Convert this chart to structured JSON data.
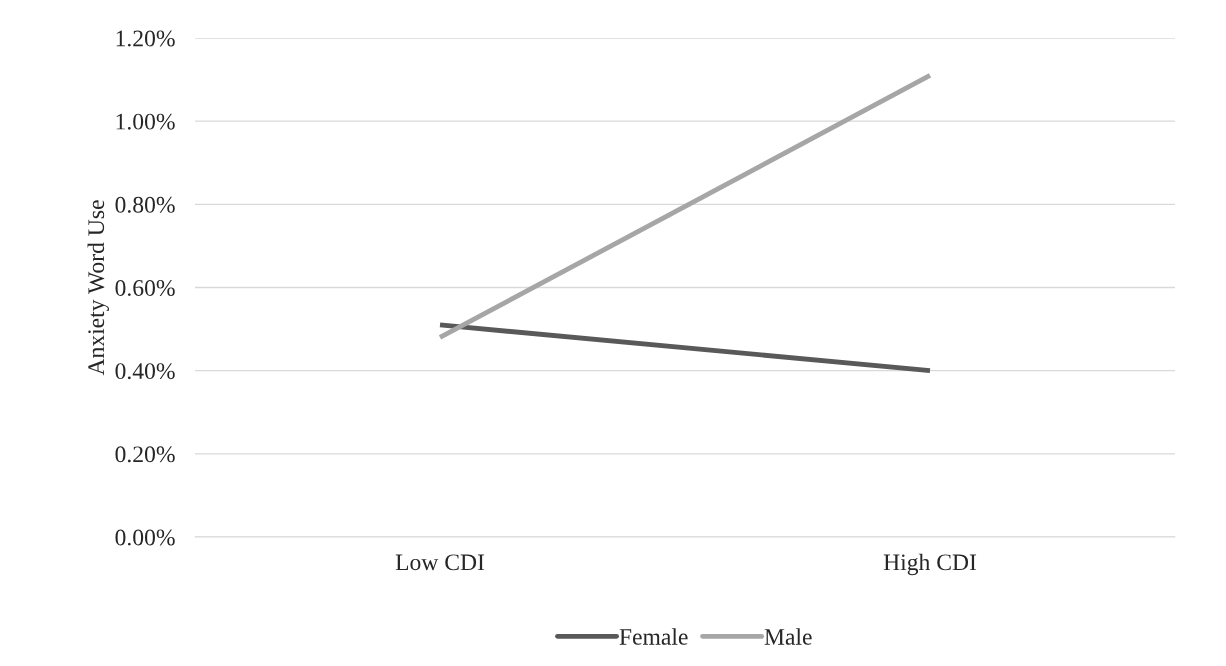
{
  "chart_data": {
    "type": "line",
    "ylabel": "Anxiety Word Use",
    "categories": [
      "Low CDI",
      "High CDI"
    ],
    "series": [
      {
        "name": "Female",
        "color": "#595959",
        "values": [
          0.51,
          0.4
        ]
      },
      {
        "name": "Male",
        "color": "#a6a6a6",
        "values": [
          0.48,
          1.11
        ]
      }
    ],
    "ylim": [
      0,
      1.2
    ],
    "yticks": [
      {
        "value": 0,
        "label": "0.00%"
      },
      {
        "value": 0.2,
        "label": "0.20%"
      },
      {
        "value": 0.4,
        "label": "0.40%"
      },
      {
        "value": 0.6,
        "label": "0.60%"
      },
      {
        "value": 0.8,
        "label": "0.80%"
      },
      {
        "value": 1.0,
        "label": "1.00%"
      },
      {
        "value": 1.2,
        "label": "1.20%"
      }
    ],
    "grid": "y",
    "legend": "bottom",
    "marker": "none",
    "line_style": "solid"
  }
}
